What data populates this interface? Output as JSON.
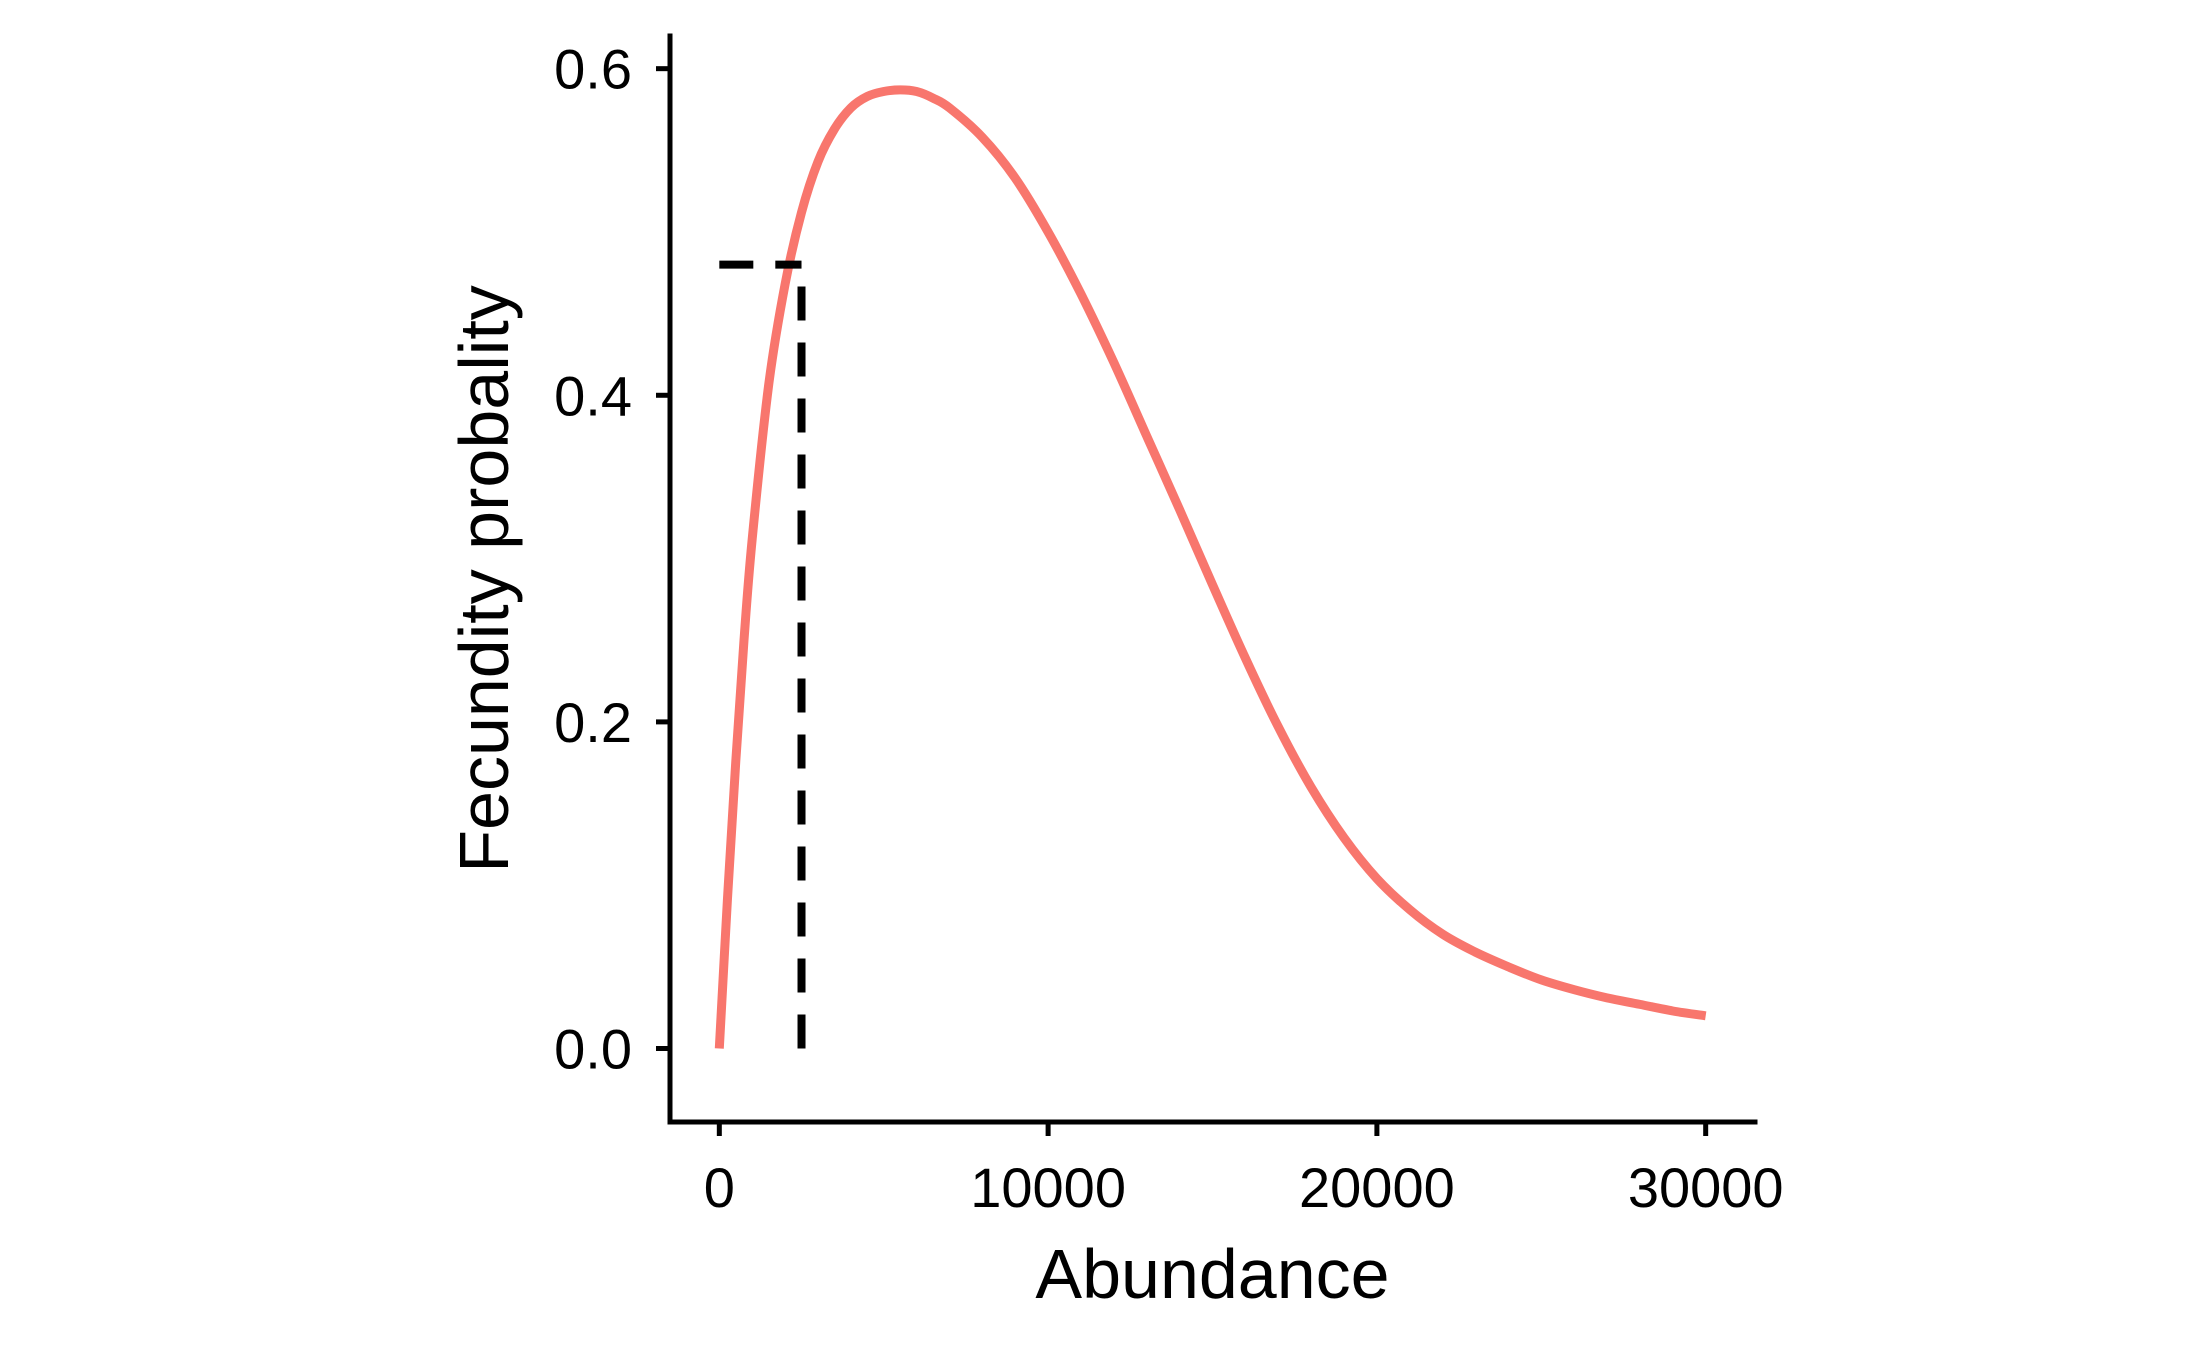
{
  "chart_data": {
    "type": "line",
    "title": "",
    "xlabel": "Abundance",
    "ylabel": "Fecundity probality",
    "xlim": [
      -1500,
      31500
    ],
    "ylim": [
      -0.045,
      0.62
    ],
    "x_ticks": [
      0,
      10000,
      20000,
      30000
    ],
    "x_tick_labels": [
      "0",
      "10000",
      "20000",
      "30000"
    ],
    "y_ticks": [
      0.0,
      0.2,
      0.4,
      0.6
    ],
    "y_tick_labels": [
      "0.0",
      "0.2",
      "0.4",
      "0.6"
    ],
    "grid": false,
    "legend": "none",
    "series": [
      {
        "color": "#F8766D",
        "x": [
          0,
          250,
          500,
          750,
          1000,
          1500,
          2000,
          2500,
          3000,
          3500,
          4000,
          4500,
          5000,
          5500,
          6000,
          6500,
          7000,
          8000,
          9000,
          10000,
          11000,
          12000,
          13000,
          14000,
          15000,
          16000,
          17000,
          18000,
          19000,
          20000,
          21000,
          22000,
          23000,
          24000,
          25000,
          26000,
          27000,
          28000,
          29000,
          30000
        ],
        "y": [
          0.0,
          0.092,
          0.176,
          0.25,
          0.312,
          0.406,
          0.468,
          0.512,
          0.543,
          0.563,
          0.576,
          0.583,
          0.586,
          0.587,
          0.586,
          0.582,
          0.576,
          0.558,
          0.533,
          0.5,
          0.462,
          0.42,
          0.375,
          0.33,
          0.284,
          0.239,
          0.197,
          0.16,
          0.129,
          0.104,
          0.085,
          0.07,
          0.059,
          0.05,
          0.042,
          0.036,
          0.031,
          0.027,
          0.023,
          0.02
        ]
      }
    ],
    "reference_lines": [
      {
        "style": "dashed",
        "color": "#000000",
        "orientation": "horizontal",
        "y": 0.48,
        "x_from": 0,
        "x_to": 2500
      },
      {
        "style": "dashed",
        "color": "#000000",
        "orientation": "vertical",
        "x": 2500,
        "y_from": 0.0,
        "y_to": 0.48
      }
    ]
  }
}
